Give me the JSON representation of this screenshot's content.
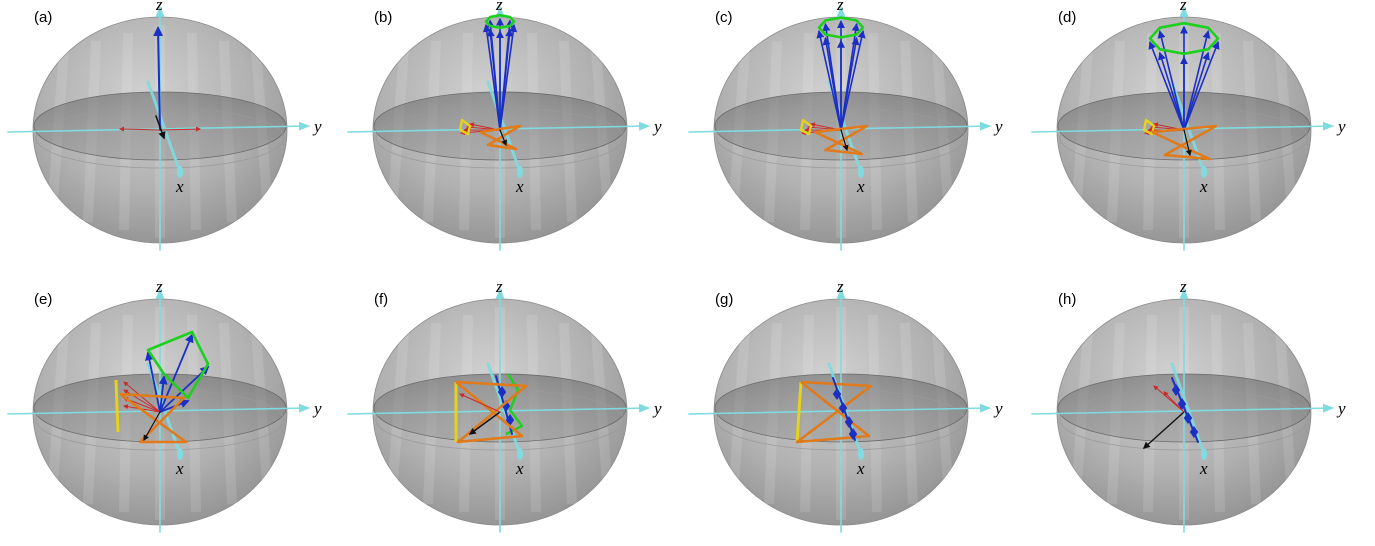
{
  "axis_labels": {
    "x": "x",
    "y": "y",
    "z": "z"
  },
  "colors": {
    "sphere": "#8f8f8f",
    "band": "#6e6e6e",
    "axis": "#7fdbe0",
    "blue_vector": "#1c2fc4",
    "red_vector": "#cc2a2a",
    "black_vector": "#111111",
    "green_trace": "#1ed01e",
    "orange_trace": "#e07a1a",
    "yellow_trace": "#e4d21c"
  },
  "panels": [
    {
      "label": "(a)",
      "stage": 0
    },
    {
      "label": "(b)",
      "stage": 1
    },
    {
      "label": "(c)",
      "stage": 2
    },
    {
      "label": "(d)",
      "stage": 3
    },
    {
      "label": "(e)",
      "stage": 4
    },
    {
      "label": "(f)",
      "stage": 5
    },
    {
      "label": "(g)",
      "stage": 6
    },
    {
      "label": "(h)",
      "stage": 7
    }
  ]
}
